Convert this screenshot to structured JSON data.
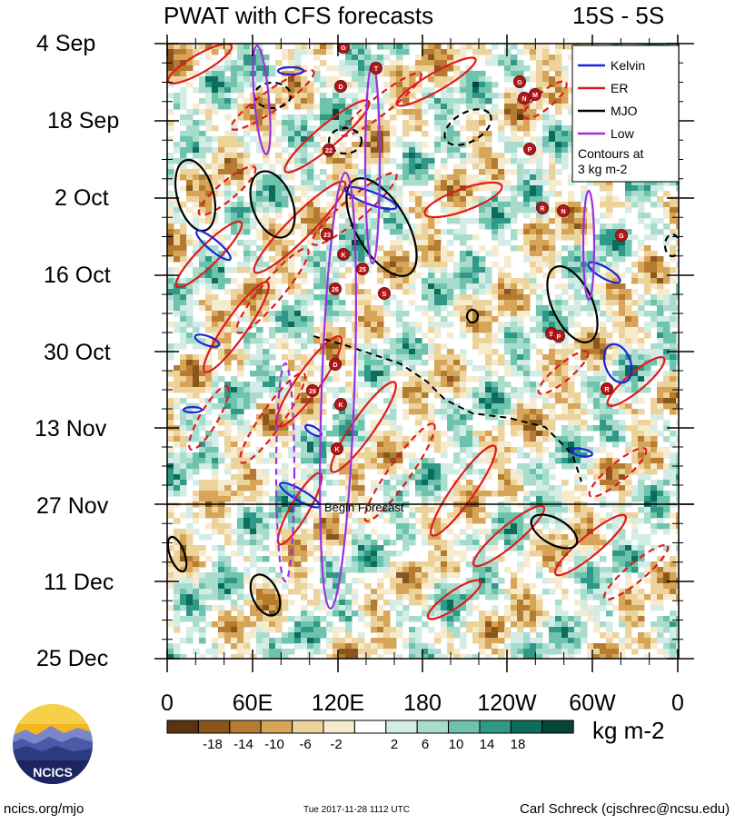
{
  "chart_data": {
    "type": "heatmap",
    "title": "PWAT with CFS forecasts",
    "region_label": "15S - 5S",
    "y_ticks": [
      "4 Sep",
      "18 Sep",
      "2 Oct",
      "16 Oct",
      "30 Oct",
      "13 Nov",
      "27 Nov",
      "11 Dec",
      "25 Dec"
    ],
    "x_ticks": [
      "0",
      "60E",
      "120E",
      "180",
      "120W",
      "60W",
      "0"
    ],
    "colorbar": {
      "labels": [
        "-18",
        "-14",
        "-10",
        "-6",
        "-2",
        "2",
        "6",
        "10",
        "14",
        "18"
      ],
      "colors": [
        "#5a3410",
        "#8a561b",
        "#b57c31",
        "#d6a558",
        "#ecd29b",
        "#f6ebcf",
        "#ffffff",
        "#d3ece5",
        "#a8dccd",
        "#6ec3ad",
        "#2f9887",
        "#0d6d5d",
        "#054438"
      ],
      "units": "kg m-2"
    },
    "legend": [
      {
        "label": "Kelvin",
        "color": "#1f24d8"
      },
      {
        "label": "ER",
        "color": "#e01a1a"
      },
      {
        "label": "MJO",
        "color": "#000000"
      },
      {
        "label": "Low",
        "color": "#9b30e0"
      }
    ],
    "legend_note_1": "Contours at",
    "legend_note_2": "3 kg m-2",
    "forecast_label": "Begin Forecast",
    "forecast_start": "27 Nov",
    "storm_labels": [
      "G",
      "T",
      "D",
      "22",
      "23",
      "K",
      "25",
      "26",
      "S",
      "D",
      "29",
      "K",
      "K",
      "G",
      "N",
      "M",
      "P",
      "R",
      "N",
      "G",
      "S",
      "P",
      "R"
    ]
  },
  "footer": {
    "left": "ncics.org/mjo",
    "middle": "Tue 2017-11-28 1112 UTC",
    "right": "Carl Schreck (cjschrec@ncsu.edu)"
  },
  "logo": {
    "text": "NCICS"
  }
}
